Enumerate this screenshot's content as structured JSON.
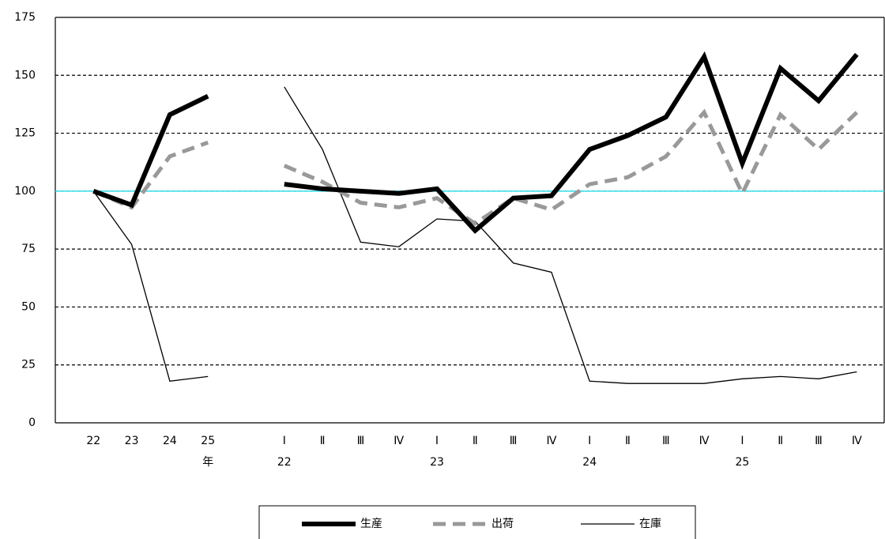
{
  "chart_data": {
    "type": "line",
    "categories": [
      null,
      "22",
      "23",
      "24",
      "25",
      null,
      "Ⅰ",
      "Ⅱ",
      "Ⅲ",
      "Ⅳ",
      "Ⅰ",
      "Ⅱ",
      "Ⅲ",
      "Ⅳ",
      "Ⅰ",
      "Ⅱ",
      "Ⅲ",
      "Ⅳ",
      "Ⅰ",
      "Ⅱ",
      "Ⅲ",
      "Ⅳ"
    ],
    "category_sublabels": [
      null,
      null,
      null,
      null,
      "年",
      null,
      "22",
      null,
      null,
      null,
      "23",
      null,
      null,
      null,
      "24",
      null,
      null,
      null,
      "25",
      null,
      null,
      null
    ],
    "series": [
      {
        "name": "生産",
        "color": "#000000",
        "line_width": 6,
        "dash": "none",
        "values": [
          null,
          100,
          94,
          133,
          141,
          null,
          103,
          101,
          100,
          99,
          101,
          83,
          97,
          98,
          118,
          124,
          132,
          158,
          112,
          153,
          139,
          159
        ]
      },
      {
        "name": "出荷",
        "color": "#999999",
        "line_width": 5,
        "dash": "16 9",
        "values": [
          null,
          100,
          93,
          115,
          121,
          null,
          111,
          104,
          95,
          93,
          97,
          86,
          97,
          92,
          103,
          106,
          115,
          134,
          99,
          133,
          118,
          134
        ]
      },
      {
        "name": "在庫",
        "color": "#000000",
        "line_width": 1.3,
        "dash": "none",
        "values": [
          null,
          100,
          77,
          18,
          20,
          null,
          145,
          118,
          78,
          76,
          88,
          87,
          69,
          65,
          18,
          17,
          17,
          17,
          19,
          20,
          19,
          22
        ]
      }
    ],
    "ylim": [
      0,
      175
    ],
    "yticks": [
      0,
      25,
      50,
      75,
      100,
      125,
      150,
      175
    ],
    "grid": true,
    "reference_line": 100,
    "reference_color": "#33e0ee"
  }
}
